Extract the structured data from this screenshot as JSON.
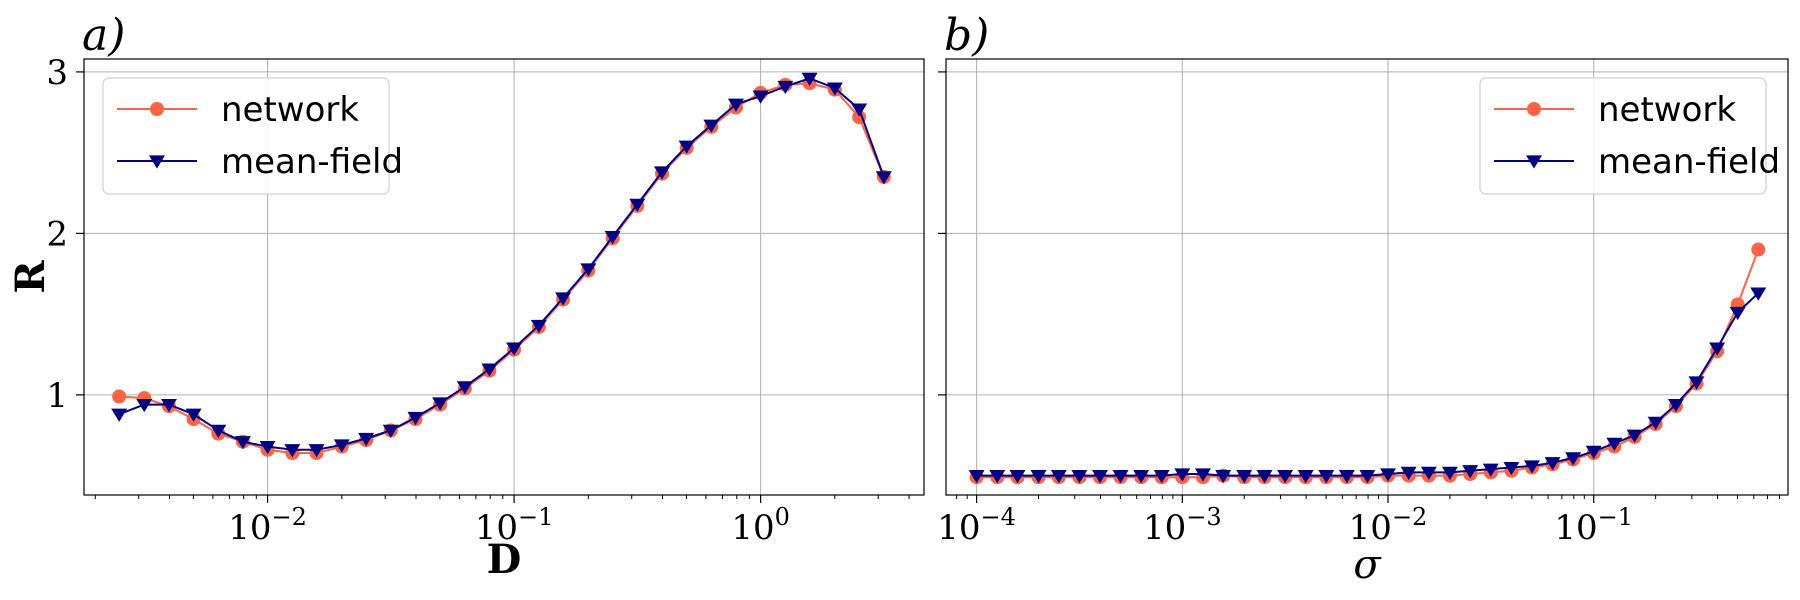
{
  "chart_data": [
    {
      "type": "line",
      "panel_label": "a)",
      "xlabel": "D",
      "ylabel": "R",
      "xscale": "log",
      "xlim": [
        0.0018,
        4.6
      ],
      "ylim": [
        0.38,
        3.08
      ],
      "grid": true,
      "legend_position": "top-left",
      "yticks": [
        1,
        2,
        3
      ],
      "ytick_labels": [
        "1",
        "2",
        "3"
      ],
      "xticks": [
        0.01,
        0.1,
        1
      ],
      "xtick_bases": [
        "10",
        "10",
        "10"
      ],
      "xtick_exponents": [
        "−2",
        "−1",
        "0"
      ],
      "series": [
        {
          "name": "network",
          "color": "#ff6347",
          "marker": "circle",
          "x": [
            0.0025,
            0.00316,
            0.00398,
            0.00501,
            0.00631,
            0.00794,
            0.01,
            0.0126,
            0.0158,
            0.02,
            0.0251,
            0.0316,
            0.0398,
            0.0501,
            0.0631,
            0.0794,
            0.1,
            0.126,
            0.158,
            0.2,
            0.251,
            0.316,
            0.398,
            0.501,
            0.631,
            0.794,
            1.0,
            1.26,
            1.58,
            2.0,
            2.51,
            3.16
          ],
          "y": [
            0.99,
            0.98,
            0.93,
            0.85,
            0.76,
            0.71,
            0.66,
            0.64,
            0.64,
            0.68,
            0.72,
            0.78,
            0.85,
            0.94,
            1.04,
            1.15,
            1.28,
            1.42,
            1.59,
            1.77,
            1.97,
            2.17,
            2.37,
            2.53,
            2.66,
            2.78,
            2.87,
            2.92,
            2.93,
            2.89,
            2.72,
            2.35
          ]
        },
        {
          "name": "mean-field",
          "color": "#000080",
          "marker": "triangle-down",
          "x": [
            0.0025,
            0.00316,
            0.00398,
            0.00501,
            0.00631,
            0.00794,
            0.01,
            0.0126,
            0.0158,
            0.02,
            0.0251,
            0.0316,
            0.0398,
            0.0501,
            0.0631,
            0.0794,
            0.1,
            0.126,
            0.158,
            0.2,
            0.251,
            0.316,
            0.398,
            0.501,
            0.631,
            0.794,
            1.0,
            1.26,
            1.58,
            2.0,
            2.51,
            3.16
          ],
          "y": [
            0.88,
            0.94,
            0.94,
            0.88,
            0.78,
            0.71,
            0.68,
            0.66,
            0.66,
            0.69,
            0.73,
            0.78,
            0.86,
            0.95,
            1.05,
            1.16,
            1.29,
            1.43,
            1.6,
            1.78,
            1.98,
            2.18,
            2.38,
            2.54,
            2.67,
            2.8,
            2.85,
            2.91,
            2.96,
            2.9,
            2.77,
            2.35
          ]
        }
      ]
    },
    {
      "type": "line",
      "panel_label": "b)",
      "xlabel": "σ",
      "ylabel": "",
      "xscale": "log",
      "xlim": [
        7.1e-05,
        0.88
      ],
      "ylim": [
        0.38,
        3.08
      ],
      "grid": true,
      "legend_position": "top-right",
      "yticks": [
        1,
        2,
        3
      ],
      "xticks": [
        0.0001,
        0.001,
        0.01,
        0.1
      ],
      "xtick_bases": [
        "10",
        "10",
        "10",
        "10"
      ],
      "xtick_exponents": [
        "−4",
        "−3",
        "−2",
        "−1"
      ],
      "series": [
        {
          "name": "network",
          "color": "#ff6347",
          "marker": "circle",
          "x": [
            0.0001,
            0.000126,
            0.000158,
            0.0002,
            0.000251,
            0.000316,
            0.000398,
            0.000501,
            0.000631,
            0.000794,
            0.001,
            0.00126,
            0.00158,
            0.002,
            0.00251,
            0.00316,
            0.00398,
            0.00501,
            0.00631,
            0.00794,
            0.01,
            0.0126,
            0.0158,
            0.02,
            0.0251,
            0.0316,
            0.0398,
            0.0501,
            0.0631,
            0.0794,
            0.1,
            0.126,
            0.158,
            0.2,
            0.251,
            0.316,
            0.398,
            0.501,
            0.631
          ],
          "y": [
            0.49,
            0.49,
            0.49,
            0.49,
            0.49,
            0.49,
            0.49,
            0.49,
            0.49,
            0.49,
            0.49,
            0.49,
            0.5,
            0.49,
            0.49,
            0.49,
            0.49,
            0.49,
            0.49,
            0.49,
            0.5,
            0.5,
            0.5,
            0.5,
            0.51,
            0.52,
            0.53,
            0.55,
            0.57,
            0.6,
            0.64,
            0.68,
            0.74,
            0.82,
            0.93,
            1.07,
            1.27,
            1.56,
            1.9
          ]
        },
        {
          "name": "mean-field",
          "color": "#000080",
          "marker": "triangle-down",
          "x": [
            0.0001,
            0.000126,
            0.000158,
            0.0002,
            0.000251,
            0.000316,
            0.000398,
            0.000501,
            0.000631,
            0.000794,
            0.001,
            0.00126,
            0.00158,
            0.002,
            0.00251,
            0.00316,
            0.00398,
            0.00501,
            0.00631,
            0.00794,
            0.01,
            0.0126,
            0.0158,
            0.02,
            0.0251,
            0.0316,
            0.0398,
            0.0501,
            0.0631,
            0.0794,
            0.1,
            0.126,
            0.158,
            0.2,
            0.251,
            0.316,
            0.398,
            0.501,
            0.631
          ],
          "y": [
            0.5,
            0.5,
            0.5,
            0.5,
            0.5,
            0.5,
            0.5,
            0.5,
            0.5,
            0.5,
            0.51,
            0.51,
            0.5,
            0.5,
            0.5,
            0.5,
            0.5,
            0.5,
            0.5,
            0.5,
            0.51,
            0.52,
            0.52,
            0.52,
            0.53,
            0.54,
            0.55,
            0.56,
            0.58,
            0.61,
            0.65,
            0.7,
            0.75,
            0.83,
            0.94,
            1.08,
            1.29,
            1.51,
            1.63
          ]
        }
      ]
    }
  ]
}
